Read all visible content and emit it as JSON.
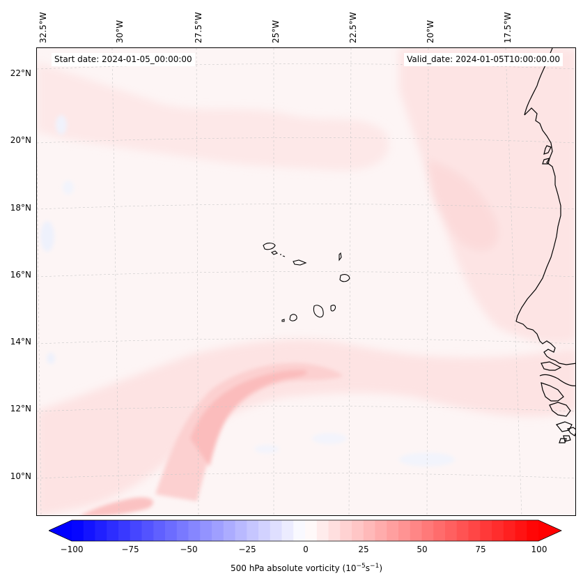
{
  "map": {
    "start_date_label": "Start date: 2024-01-05_00:00:00",
    "valid_date_label": "Valid_date: 2024-01-05T10:00:00.00",
    "longitude_labels": [
      "32.5°W",
      "30°W",
      "27.5°W",
      "25°W",
      "22.5°W",
      "20°W",
      "17.5°W"
    ],
    "latitude_labels": [
      "22°N",
      "20°N",
      "18°N",
      "16°N",
      "14°N",
      "12°N",
      "10°N"
    ],
    "field": "500 hPa absolute vorticity",
    "features": [
      "Cape Verde islands",
      "West African coastline"
    ]
  },
  "colorbar": {
    "label_text": "500 hPa absolute vorticity (10",
    "label_exp1": "−5",
    "label_mid": "s",
    "label_exp2": "−1",
    "label_close": ")",
    "ticks": [
      "−100",
      "−75",
      "−50",
      "−25",
      "0",
      "25",
      "50",
      "75",
      "100"
    ],
    "min": -100,
    "max": 100,
    "low_color": "#0000ff",
    "mid_color": "#ffffff",
    "high_color": "#ff0000"
  }
}
